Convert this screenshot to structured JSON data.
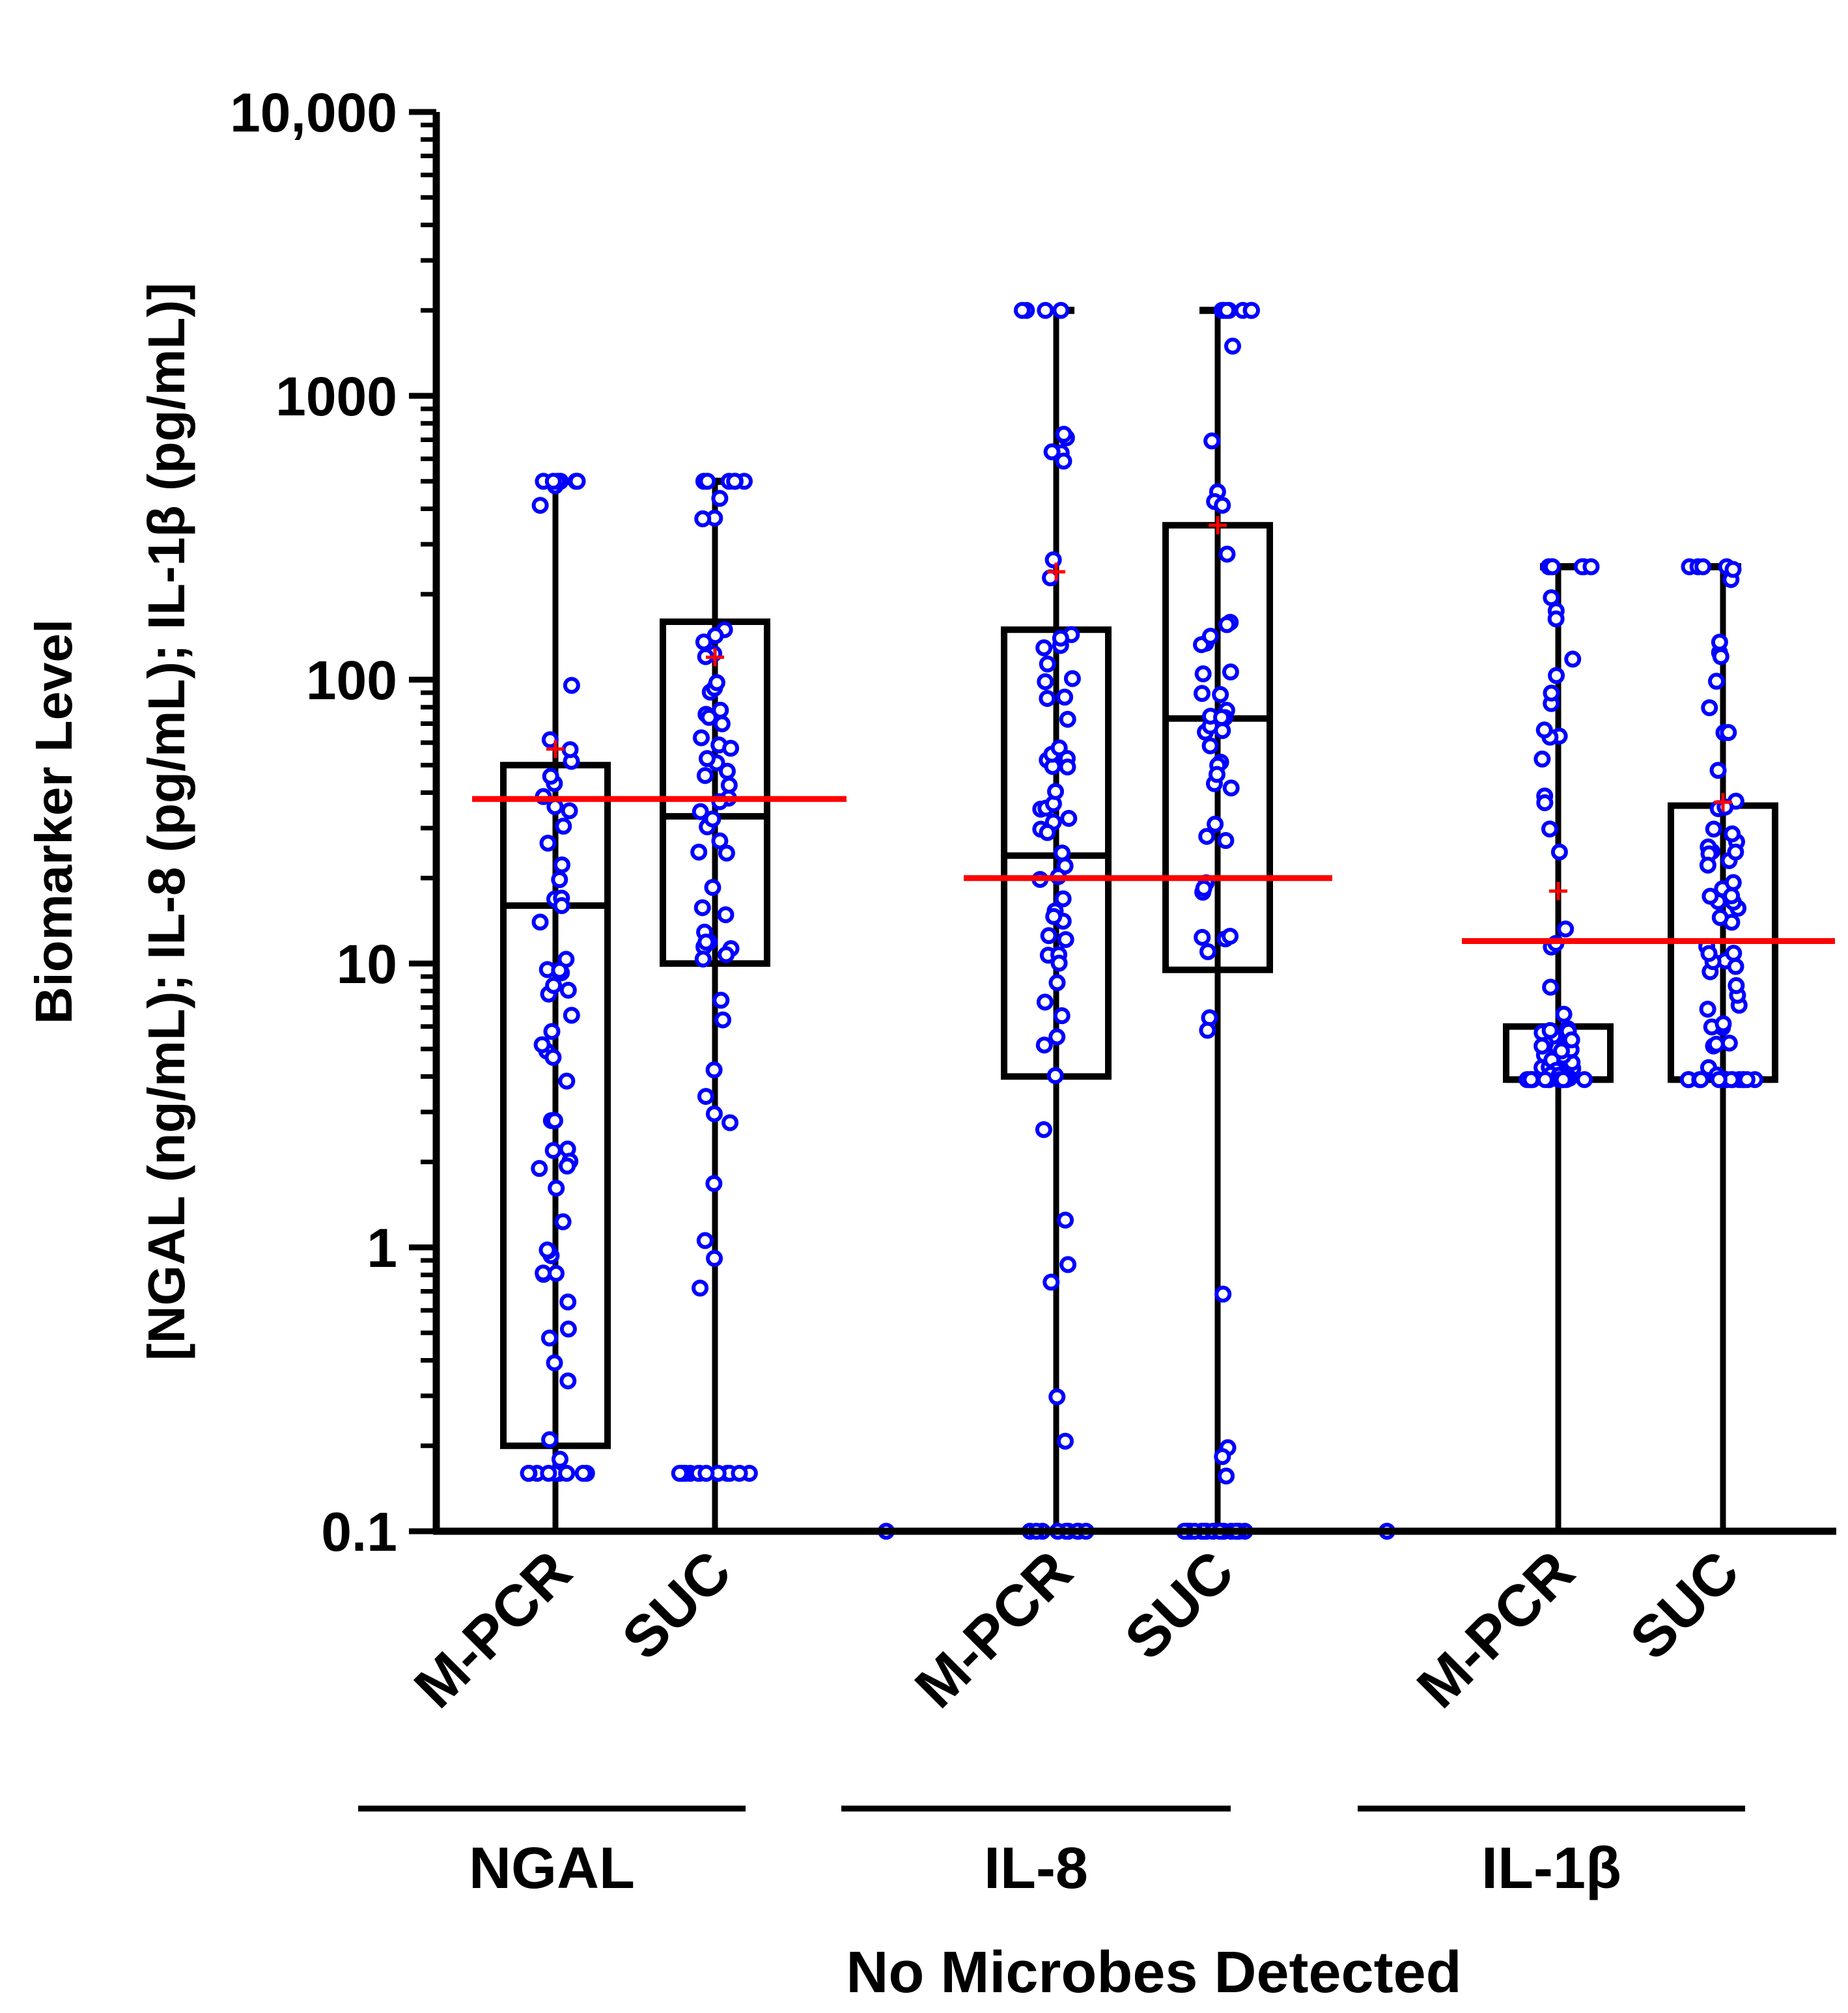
{
  "chart_data": {
    "type": "box",
    "scale": "log10",
    "ylim": [
      0.1,
      10000
    ],
    "ylabel_line1": "Biomarker Level",
    "ylabel_line2": "[NGAL (ng/mL); IL-8 (pg/mL); IL-1β (pg/mL)]",
    "xlabel": "No Microbes Detected",
    "y_ticks": [
      {
        "value": 0.1,
        "label": "0.1"
      },
      {
        "value": 1,
        "label": "1"
      },
      {
        "value": 10,
        "label": "10"
      },
      {
        "value": 100,
        "label": "100"
      },
      {
        "value": 1000,
        "label": "1000"
      },
      {
        "value": 10000,
        "label": "10,000"
      }
    ],
    "groups": [
      {
        "name": "NGAL",
        "threshold": 38,
        "boxes": [
          {
            "label": "M-PCR",
            "min": 0.16,
            "q1": 0.2,
            "median": 16,
            "q3": 50,
            "max": 500,
            "mean": 57
          },
          {
            "label": "SUC",
            "min": 0.16,
            "q1": 10,
            "median": 33,
            "q3": 160,
            "max": 500,
            "mean": 120
          }
        ]
      },
      {
        "name": "IL-8",
        "threshold": 20,
        "boxes": [
          {
            "label": "M-PCR",
            "min": 0.1,
            "q1": 4,
            "median": 24,
            "q3": 150,
            "max": 2000,
            "mean": 240
          },
          {
            "label": "SUC",
            "min": 0.1,
            "q1": 9.5,
            "median": 73,
            "q3": 350,
            "max": 2000,
            "mean": 350
          }
        ]
      },
      {
        "name": "IL-1β",
        "threshold": 12,
        "boxes": [
          {
            "label": "M-PCR",
            "min": 3.9,
            "q1": 3.9,
            "median": 3.9,
            "q3": 6,
            "max": 250,
            "mean": 18
          },
          {
            "label": "SUC",
            "min": 3.9,
            "q1": 3.9,
            "median": 3.9,
            "q3": 36,
            "max": 250,
            "mean": 37
          }
        ]
      }
    ],
    "colors": {
      "points": "#0000ff",
      "threshold": "#ff0000",
      "mean_marker": "#ff0000",
      "box": "#000000"
    }
  }
}
